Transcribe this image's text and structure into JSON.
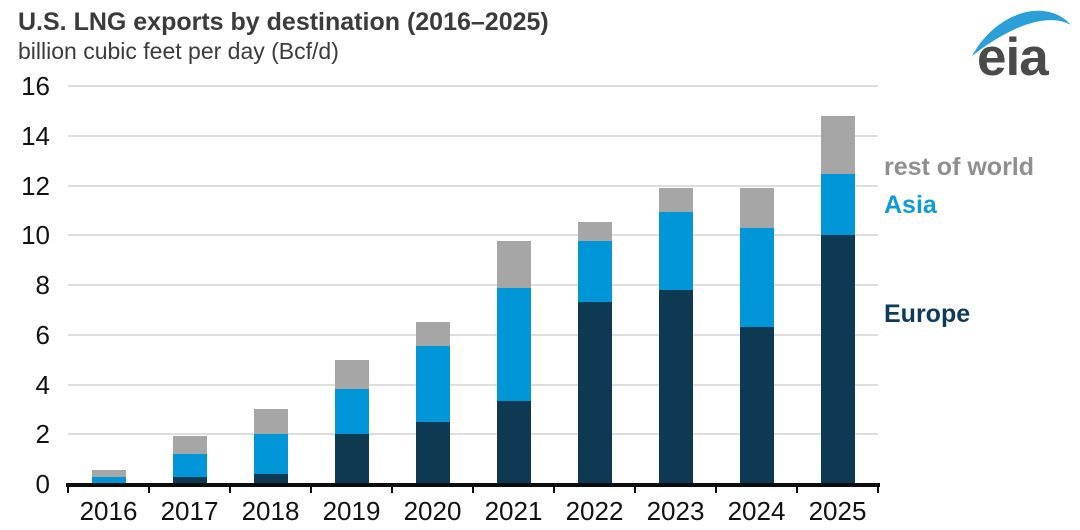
{
  "header": {
    "title": "U.S. LNG exports by destination (2016–2025)",
    "subtitle": "billion cubic feet per day (Bcf/d)"
  },
  "logo": {
    "text": "eia",
    "text_color": "#4a4a4a",
    "swoosh_color": "#2b9fd8"
  },
  "colors": {
    "europe": "#0d3a52",
    "asia": "#0096d7",
    "rest_of_world": "#a6a6a6",
    "gridline": "#dedede",
    "axis": "#0c0c0c"
  },
  "chart_data": {
    "type": "bar",
    "stacked": true,
    "title": "U.S. LNG exports by destination (2016–2025)",
    "ylabel": "billion cubic feet per day (Bcf/d)",
    "categories": [
      "2016",
      "2017",
      "2018",
      "2019",
      "2020",
      "2021",
      "2022",
      "2023",
      "2024",
      "2025"
    ],
    "series": [
      {
        "name": "Europe",
        "color": "#0d3a52",
        "values": [
          0.02,
          0.3,
          0.4,
          2.0,
          2.5,
          3.35,
          7.3,
          7.8,
          6.3,
          10.0
        ]
      },
      {
        "name": "Asia",
        "color": "#0096d7",
        "values": [
          0.28,
          0.9,
          1.6,
          1.8,
          3.05,
          4.55,
          2.45,
          3.15,
          4.0,
          2.45
        ]
      },
      {
        "name": "rest of world",
        "color": "#a6a6a6",
        "values": [
          0.25,
          0.75,
          1.0,
          1.2,
          0.95,
          1.85,
          0.8,
          0.95,
          1.6,
          2.35
        ]
      }
    ],
    "totals": [
      0.55,
      1.95,
      3.0,
      5.0,
      6.5,
      9.75,
      10.55,
      11.9,
      11.9,
      14.8
    ],
    "ylim": [
      0,
      16
    ],
    "yticks": [
      0,
      2,
      4,
      6,
      8,
      10,
      12,
      14,
      16
    ],
    "grid": true,
    "legend_position": "right",
    "legend": [
      {
        "label": "rest of world",
        "color": "#8f8f8f"
      },
      {
        "label": "Asia",
        "color": "#0f9ad8"
      },
      {
        "label": "Europe",
        "color": "#0e3a5c"
      }
    ]
  }
}
